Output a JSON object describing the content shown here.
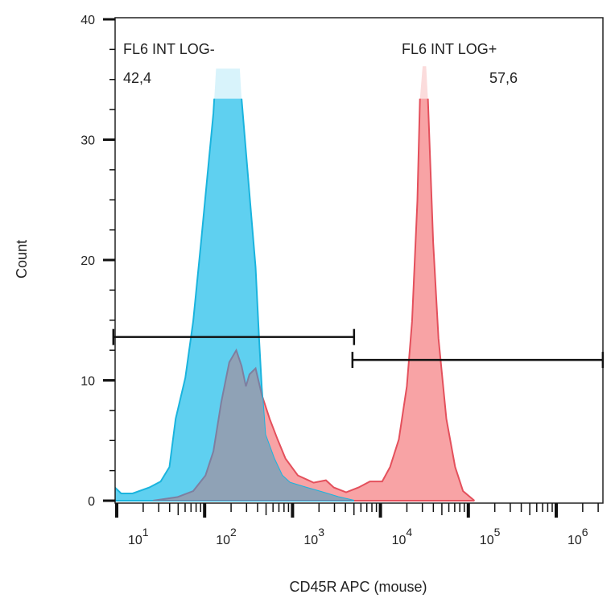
{
  "chart_data": {
    "type": "area",
    "title": "",
    "xlabel": "CD45R APC (mouse)",
    "ylabel": "Count",
    "x_scale": "log",
    "xlim_log10": [
      0.98,
      6.53
    ],
    "ylim": [
      0,
      40
    ],
    "y_ticks": [
      "0",
      "10",
      "20",
      "30",
      "40"
    ],
    "x_ticks": [
      {
        "base": "10",
        "exp": "1"
      },
      {
        "base": "10",
        "exp": "2"
      },
      {
        "base": "10",
        "exp": "3"
      },
      {
        "base": "10",
        "exp": "4"
      },
      {
        "base": "10",
        "exp": "5"
      },
      {
        "base": "10",
        "exp": "6"
      }
    ],
    "grid": false,
    "colors": {
      "blue_fill": "#5fd0f0",
      "blue_stroke": "#1ab4de",
      "red_fill": "#f8a3a5",
      "red_stroke": "#e4505c",
      "overlap_fill": "#8fa2b6",
      "overlap_stroke": "#7e7fa0"
    },
    "series": [
      {
        "color": "blue",
        "log10_x": [
          0.98,
          1.05,
          1.18,
          1.37,
          1.5,
          1.6,
          1.67,
          1.78,
          1.87,
          1.96,
          2.03,
          2.1,
          2.13,
          2.4,
          2.42,
          2.51,
          2.58,
          2.62,
          2.65,
          2.69,
          2.79,
          2.88,
          2.97,
          3.15,
          3.34,
          3.52,
          3.7
        ],
        "count": [
          1.1,
          0.6,
          0.6,
          1.1,
          1.6,
          2.8,
          6.8,
          10.2,
          14.9,
          21.5,
          26.9,
          32.2,
          35.9,
          35.9,
          33.4,
          25.5,
          19.4,
          13.4,
          9.4,
          5.5,
          3.5,
          2.1,
          1.5,
          1.1,
          0.7,
          0.3,
          0
        ]
      },
      {
        "color": "red",
        "log10_x": [
          1.41,
          1.69,
          1.87,
          2.01,
          2.1,
          2.19,
          2.28,
          2.36,
          2.42,
          2.47,
          2.51,
          2.58,
          2.65,
          2.74,
          2.83,
          2.92,
          3.06,
          3.24,
          3.38,
          3.47,
          3.61,
          3.75,
          3.88,
          4.02,
          4.11,
          4.21,
          4.3,
          4.36,
          4.42,
          4.45,
          4.48,
          4.52,
          4.54,
          4.6,
          4.66,
          4.75,
          4.85,
          4.94,
          5.07
        ],
        "count": [
          0,
          0.3,
          0.8,
          2.1,
          4.1,
          8.2,
          11.5,
          12.5,
          11.2,
          9.5,
          10.5,
          11.0,
          8.8,
          6.8,
          5.1,
          3.5,
          2.1,
          1.5,
          1.7,
          1.1,
          0.7,
          1.1,
          1.6,
          1.6,
          2.8,
          5.1,
          9.5,
          14.9,
          24.9,
          33.4,
          36.1,
          36.1,
          33.4,
          21.5,
          13.5,
          6.8,
          2.8,
          0.8,
          0
        ]
      }
    ],
    "gates": [
      {
        "name": "FL6 INT LOG-",
        "value": "42,4",
        "log10_range": [
          0.98,
          3.7
        ],
        "y": 13.6
      },
      {
        "name": "FL6 INT LOG+",
        "value": "57,6",
        "log10_range": [
          3.7,
          6.53
        ],
        "y": 11.7
      }
    ],
    "clip_level": 33.4
  }
}
